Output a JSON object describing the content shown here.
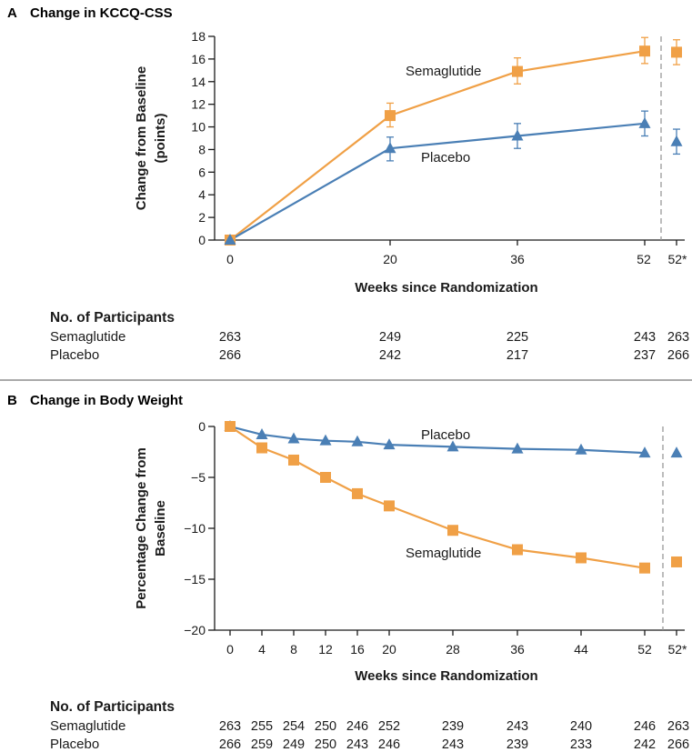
{
  "chart_data": [
    {
      "type": "line",
      "panel": "A",
      "title": "Change in KCCQ-CSS",
      "xlabel": "Weeks since Randomization",
      "ylabel": "Change from Baseline (points)",
      "ylabel_lines": [
        "Change from Baseline",
        "(points)"
      ],
      "ylim": [
        0,
        18
      ],
      "yticks": [
        0,
        2,
        4,
        6,
        8,
        10,
        12,
        14,
        16,
        18
      ],
      "x_ticks": [
        "0",
        "20",
        "36",
        "52",
        "52*"
      ],
      "series": [
        {
          "name": "Semaglutide",
          "color": "#f0a046",
          "marker": "square",
          "x": [
            0,
            20,
            36,
            52
          ],
          "values": [
            0,
            11.0,
            14.9,
            16.7
          ],
          "ci_low": [
            0,
            10.0,
            13.8,
            15.6
          ],
          "ci_high": [
            0,
            12.1,
            16.1,
            17.9
          ],
          "x52star": 16.6,
          "x52star_ci": [
            15.5,
            17.7
          ]
        },
        {
          "name": "Placebo",
          "color": "#4a7fb5",
          "marker": "triangle",
          "x": [
            0,
            20,
            36,
            52
          ],
          "values": [
            0,
            8.1,
            9.2,
            10.3
          ],
          "ci_low": [
            0,
            7.0,
            8.1,
            9.2
          ],
          "ci_high": [
            0,
            9.1,
            10.3,
            11.4
          ],
          "x52star": 8.7,
          "x52star_ci": [
            7.6,
            9.8
          ]
        }
      ],
      "participants": {
        "header": "No. of Participants",
        "rows": [
          {
            "label": "Semaglutide",
            "counts": [
              "263",
              "249",
              "225",
              "243",
              "263"
            ]
          },
          {
            "label": "Placebo",
            "counts": [
              "266",
              "242",
              "217",
              "237",
              "266"
            ]
          }
        ]
      }
    },
    {
      "type": "line",
      "panel": "B",
      "title": "Change in Body Weight",
      "xlabel": "Weeks since Randomization",
      "ylabel": "Percentage Change from Baseline",
      "ylabel_lines": [
        "Percentage Change from",
        "Baseline"
      ],
      "ylim": [
        -20,
        0
      ],
      "yticks": [
        0,
        -5,
        -10,
        -15,
        -20
      ],
      "ytick_labels": [
        "0",
        "−5",
        "−10",
        "−15",
        "−20"
      ],
      "x_ticks": [
        "0",
        "4",
        "8",
        "12",
        "16",
        "20",
        "28",
        "36",
        "44",
        "52",
        "52*"
      ],
      "series": [
        {
          "name": "Placebo",
          "color": "#4a7fb5",
          "marker": "triangle",
          "x": [
            0,
            4,
            8,
            12,
            16,
            20,
            28,
            36,
            44,
            52
          ],
          "values": [
            0,
            -0.8,
            -1.2,
            -1.4,
            -1.5,
            -1.8,
            -2.0,
            -2.2,
            -2.3,
            -2.6
          ],
          "x52star": -2.6
        },
        {
          "name": "Semaglutide",
          "color": "#f0a046",
          "marker": "square",
          "x": [
            0,
            4,
            8,
            12,
            16,
            20,
            28,
            36,
            44,
            52
          ],
          "values": [
            0,
            -2.1,
            -3.3,
            -5.0,
            -6.6,
            -7.8,
            -10.2,
            -12.1,
            -12.9,
            -13.9
          ],
          "x52star": -13.3
        }
      ],
      "participants": {
        "header": "No. of Participants",
        "rows": [
          {
            "label": "Semaglutide",
            "counts": [
              "263",
              "255",
              "254",
              "250",
              "246",
              "252",
              "239",
              "243",
              "240",
              "246",
              "263"
            ]
          },
          {
            "label": "Placebo",
            "counts": [
              "266",
              "259",
              "249",
              "250",
              "243",
              "246",
              "243",
              "239",
              "233",
              "242",
              "266"
            ]
          }
        ]
      }
    }
  ],
  "panel_letters": [
    "A",
    "B"
  ],
  "colors": {
    "semaglutide": "#f0a046",
    "placebo": "#4a7fb5",
    "divider": "#999999"
  }
}
